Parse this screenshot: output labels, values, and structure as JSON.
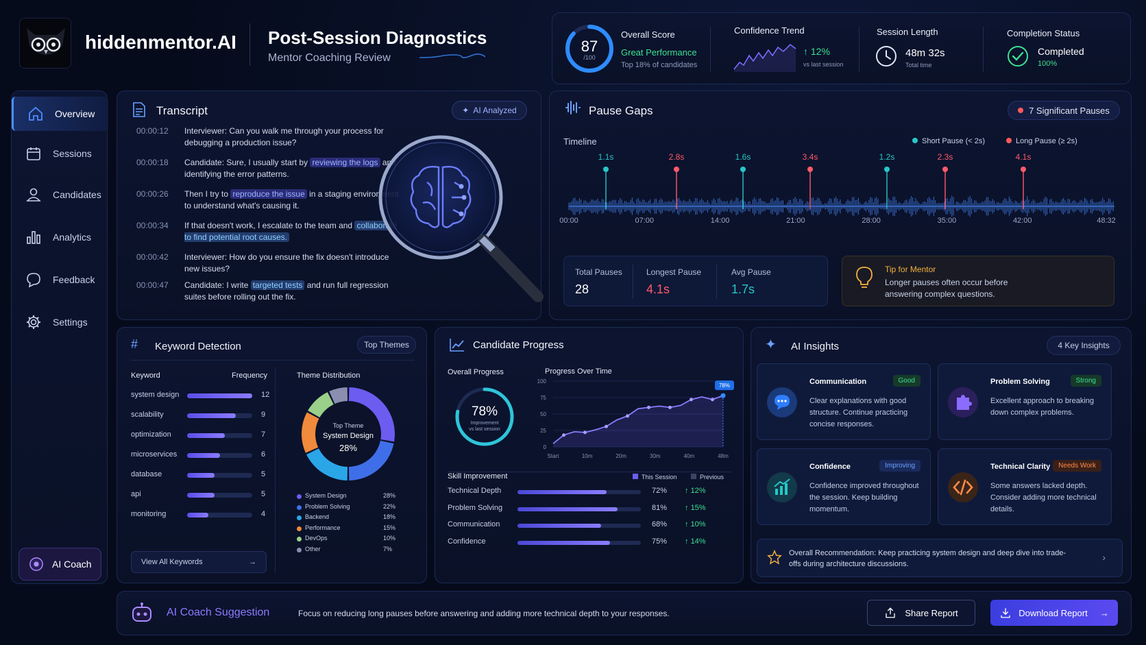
{
  "brand": {
    "name": "hiddenmentor.AI"
  },
  "header": {
    "title": "Post-Session Diagnostics",
    "subtitle": "Mentor Coaching Review"
  },
  "sidebar": {
    "items": [
      {
        "label": "Overview",
        "icon": "home-icon"
      },
      {
        "label": "Sessions",
        "icon": "calendar-icon"
      },
      {
        "label": "Candidates",
        "icon": "user-icon"
      },
      {
        "label": "Analytics",
        "icon": "bar-chart-icon"
      },
      {
        "label": "Feedback",
        "icon": "chat-icon"
      },
      {
        "label": "Settings",
        "icon": "gear-icon"
      }
    ],
    "coach_label": "AI Coach"
  },
  "stats": {
    "score": {
      "value": "87",
      "max": "/100",
      "label": "Overall Score",
      "status": "Great Performance",
      "note": "Top 18% of candidates",
      "progress": 0.87
    },
    "trend": {
      "label": "Confidence Trend",
      "value": "12%",
      "note": "vs last session"
    },
    "session": {
      "label": "Session Length",
      "value": "48m 32s",
      "note": "Total time"
    },
    "completion": {
      "label": "Completion Status",
      "value": "Completed",
      "pct": "100%"
    }
  },
  "transcript": {
    "title": "Transcript",
    "badge": "AI Analyzed",
    "lines": [
      {
        "time": "00:00:12",
        "pre": "Interviewer: Can you walk me through your process for debugging a production issue?",
        "hl": "",
        "post": ""
      },
      {
        "time": "00:00:18",
        "pre": "Candidate: Sure, I usually start by ",
        "hl": "reviewing the logs",
        "post": " and identifying the error patterns."
      },
      {
        "time": "00:00:26",
        "pre": "Then I try to ",
        "hl": "reproduce the issue",
        "post": " in a staging environment to understand what's causing it."
      },
      {
        "time": "00:00:34",
        "pre": "If that doesn't work, I escalate to the team and ",
        "hl": "collaborate to find potential root causes.",
        "post": ""
      },
      {
        "time": "00:00:42",
        "pre": "Interviewer: How do you ensure the fix doesn't introduce new issues?",
        "hl": "",
        "post": ""
      },
      {
        "time": "00:00:47",
        "pre": "Candidate: I write ",
        "hl": "targeted tests",
        "post": " and run full regression suites before rolling out the fix."
      }
    ]
  },
  "pause": {
    "title": "Pause Gaps",
    "badge": "7 Significant Pauses",
    "timeline_label": "Timeline",
    "legend_short": "Short Pause (< 2s)",
    "legend_long": "Long Pause (≥ 2s)",
    "markers": [
      {
        "label": "1.1s",
        "type": "short"
      },
      {
        "label": "2.8s",
        "type": "long"
      },
      {
        "label": "1.6s",
        "type": "short"
      },
      {
        "label": "3.4s",
        "type": "long"
      },
      {
        "label": "1.2s",
        "type": "short"
      },
      {
        "label": "2.3s",
        "type": "long"
      },
      {
        "label": "4.1s",
        "type": "long"
      }
    ],
    "ticks": [
      "00:00",
      "07:00",
      "14:00",
      "21:00",
      "28:00",
      "35:00",
      "42:00",
      "48:32"
    ],
    "total_label": "Total Pauses",
    "total": "28",
    "longest_label": "Longest Pause",
    "longest": "4.1s",
    "avg_label": "Avg Pause",
    "avg": "1.7s",
    "tip_title": "Tip for Mentor",
    "tip_body": "Longer pauses often occur before answering complex questions."
  },
  "keywords": {
    "title": "Keyword Detection",
    "badge": "Top Themes",
    "col_keyword": "Keyword",
    "col_freq": "Frequency",
    "rows": [
      {
        "k": "system design",
        "v": "12",
        "f": 1.0
      },
      {
        "k": "scalability",
        "v": "9",
        "f": 0.75
      },
      {
        "k": "optimization",
        "v": "7",
        "f": 0.58
      },
      {
        "k": "microservices",
        "v": "6",
        "f": 0.5
      },
      {
        "k": "database",
        "v": "5",
        "f": 0.42
      },
      {
        "k": "api",
        "v": "5",
        "f": 0.42
      },
      {
        "k": "monitoring",
        "v": "4",
        "f": 0.33
      }
    ],
    "view_all": "View All Keywords",
    "theme_title": "Theme Distribution",
    "center_top": "Top Theme",
    "center_name": "System Design",
    "center_pct": "28%",
    "themes": [
      {
        "name": "System Design",
        "pct": "28%",
        "value": 28,
        "color": "#6d5cf0"
      },
      {
        "name": "Problem Solving",
        "pct": "22%",
        "value": 22,
        "color": "#3f6fe8"
      },
      {
        "name": "Backend",
        "pct": "18%",
        "value": 18,
        "color": "#2aa6e8"
      },
      {
        "name": "Performance",
        "pct": "15%",
        "value": 15,
        "color": "#f08a3c"
      },
      {
        "name": "DevOps",
        "pct": "10%",
        "value": 10,
        "color": "#9bd08a"
      },
      {
        "name": "Other",
        "pct": "7%",
        "value": 7,
        "color": "#8a8fb0"
      }
    ]
  },
  "progress": {
    "title": "Candidate Progress",
    "overall_label": "Overall Progress",
    "overall_value": "78%",
    "overall_note1": "Improvement",
    "overall_note2": "vs last session",
    "chart_title": "Progress Over Time",
    "skill_title": "Skill Improvement",
    "legend_this": "This Session",
    "legend_prev": "Previous",
    "skills": [
      {
        "name": "Technical Depth",
        "pct": "72%",
        "value": 0.72,
        "imp": "12%"
      },
      {
        "name": "Problem Solving",
        "pct": "81%",
        "value": 0.81,
        "imp": "15%"
      },
      {
        "name": "Communication",
        "pct": "68%",
        "value": 0.68,
        "imp": "10%"
      },
      {
        "name": "Confidence",
        "pct": "75%",
        "value": 0.75,
        "imp": "14%"
      }
    ]
  },
  "chart_data": {
    "type": "line",
    "title": "Progress Over Time",
    "categories": [
      "Start",
      "10m",
      "20m",
      "30m",
      "40m",
      "48m"
    ],
    "y_ticks": [
      "0",
      "25",
      "50",
      "75",
      "100"
    ],
    "ylim": [
      0,
      100
    ],
    "x": [
      0,
      3,
      6,
      9,
      12,
      15,
      18,
      21,
      24,
      27,
      30,
      33,
      36,
      39,
      42,
      45,
      48
    ],
    "series": [
      {
        "values": [
          5,
          18,
          23,
          22,
          26,
          31,
          41,
          47,
          58,
          60,
          62,
          60,
          63,
          72,
          76,
          72,
          78
        ]
      }
    ],
    "end_label": "78%"
  },
  "insights": {
    "title": "AI Insights",
    "badge": "4 Key Insights",
    "cards": [
      {
        "title": "Communication",
        "tag": "Good",
        "body": "Clear explanations with good structure. Continue practicing concise responses.",
        "icon": "chat-bubble-icon"
      },
      {
        "title": "Problem Solving",
        "tag": "Strong",
        "body": "Excellent approach to breaking down complex problems.",
        "icon": "puzzle-icon"
      },
      {
        "title": "Confidence",
        "tag": "Improving",
        "body": "Confidence improved throughout the session. Keep building momentum.",
        "icon": "growth-chart-icon"
      },
      {
        "title": "Technical Clarity",
        "tag": "Needs Work",
        "body": "Some answers lacked depth. Consider adding more technical details.",
        "icon": "code-icon"
      }
    ],
    "recommendation": "Overall Recommendation: Keep practicing system design and deep dive into trade-offs during architecture discussions."
  },
  "bottom": {
    "title": "AI Coach Suggestion",
    "text": "Focus on reducing long pauses before answering and adding more technical depth to your responses.",
    "share": "Share Report",
    "download": "Download Report"
  }
}
